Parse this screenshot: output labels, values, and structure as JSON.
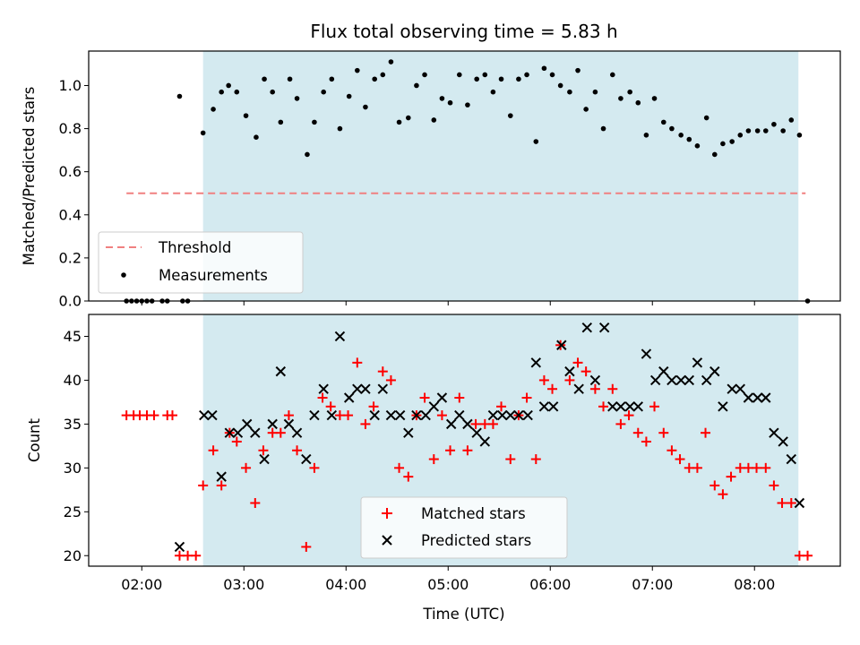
{
  "chart_data": [
    {
      "type": "scatter",
      "title": "Flux total observing time = 5.83 h",
      "xlabel": "",
      "ylabel": "Matched/Predicted stars",
      "ylim": [
        0,
        1.16
      ],
      "xlim_hours": [
        1.48,
        8.84
      ],
      "yticks": [
        "0.0",
        "0.2",
        "0.4",
        "0.6",
        "0.8",
        "1.0"
      ],
      "ytick_values": [
        0,
        0.2,
        0.4,
        0.6,
        0.8,
        1.0
      ],
      "shaded_region_hours": [
        2.6,
        8.43
      ],
      "shade_color": "#d4eaf0",
      "threshold": {
        "name": "Threshold",
        "value": 0.5,
        "x_range_hours": [
          1.85,
          8.5
        ],
        "color": "#f08080",
        "style": "dashed"
      },
      "legend_position": "lower-left",
      "series": [
        {
          "name": "Measurements",
          "color": "#000000",
          "marker": "dot",
          "points": [
            [
              1.85,
              0
            ],
            [
              1.9,
              0
            ],
            [
              1.95,
              0
            ],
            [
              2.0,
              0
            ],
            [
              2.05,
              0
            ],
            [
              2.1,
              0
            ],
            [
              2.2,
              0
            ],
            [
              2.25,
              0
            ],
            [
              2.4,
              0
            ],
            [
              2.45,
              0
            ],
            [
              2.37,
              0.95
            ],
            [
              2.6,
              0.78
            ],
            [
              2.7,
              0.89
            ],
            [
              2.78,
              0.97
            ],
            [
              2.85,
              1.0
            ],
            [
              2.93,
              0.97
            ],
            [
              3.02,
              0.86
            ],
            [
              3.12,
              0.76
            ],
            [
              3.2,
              1.03
            ],
            [
              3.28,
              0.97
            ],
            [
              3.36,
              0.83
            ],
            [
              3.45,
              1.03
            ],
            [
              3.52,
              0.94
            ],
            [
              3.62,
              0.68
            ],
            [
              3.69,
              0.83
            ],
            [
              3.78,
              0.97
            ],
            [
              3.86,
              1.03
            ],
            [
              3.94,
              0.8
            ],
            [
              4.03,
              0.95
            ],
            [
              4.11,
              1.07
            ],
            [
              4.19,
              0.9
            ],
            [
              4.28,
              1.03
            ],
            [
              4.36,
              1.05
            ],
            [
              4.44,
              1.11
            ],
            [
              4.52,
              0.83
            ],
            [
              4.61,
              0.85
            ],
            [
              4.69,
              1.0
            ],
            [
              4.77,
              1.05
            ],
            [
              4.86,
              0.84
            ],
            [
              4.94,
              0.94
            ],
            [
              5.02,
              0.92
            ],
            [
              5.11,
              1.05
            ],
            [
              5.19,
              0.91
            ],
            [
              5.28,
              1.03
            ],
            [
              5.36,
              1.05
            ],
            [
              5.44,
              0.97
            ],
            [
              5.52,
              1.03
            ],
            [
              5.61,
              0.86
            ],
            [
              5.69,
              1.03
            ],
            [
              5.77,
              1.05
            ],
            [
              5.86,
              0.74
            ],
            [
              5.94,
              1.08
            ],
            [
              6.02,
              1.05
            ],
            [
              6.1,
              1.0
            ],
            [
              6.19,
              0.97
            ],
            [
              6.27,
              1.07
            ],
            [
              6.35,
              0.89
            ],
            [
              6.44,
              0.97
            ],
            [
              6.52,
              0.8
            ],
            [
              6.61,
              1.05
            ],
            [
              6.69,
              0.94
            ],
            [
              6.78,
              0.97
            ],
            [
              6.86,
              0.92
            ],
            [
              6.94,
              0.77
            ],
            [
              7.02,
              0.94
            ],
            [
              7.11,
              0.83
            ],
            [
              7.19,
              0.8
            ],
            [
              7.28,
              0.77
            ],
            [
              7.36,
              0.75
            ],
            [
              7.44,
              0.72
            ],
            [
              7.53,
              0.85
            ],
            [
              7.61,
              0.68
            ],
            [
              7.69,
              0.73
            ],
            [
              7.78,
              0.74
            ],
            [
              7.86,
              0.77
            ],
            [
              7.94,
              0.79
            ],
            [
              8.03,
              0.79
            ],
            [
              8.11,
              0.79
            ],
            [
              8.19,
              0.82
            ],
            [
              8.28,
              0.79
            ],
            [
              8.36,
              0.84
            ],
            [
              8.44,
              0.77
            ],
            [
              8.52,
              0
            ]
          ]
        }
      ]
    },
    {
      "type": "scatter",
      "title": "",
      "xlabel": "Time (UTC)",
      "ylabel": "Count",
      "ylim": [
        18.8,
        47.5
      ],
      "xlim_hours": [
        1.48,
        8.84
      ],
      "yticks": [
        "20",
        "25",
        "30",
        "35",
        "40",
        "45"
      ],
      "ytick_values": [
        20,
        25,
        30,
        35,
        40,
        45
      ],
      "xticks": [
        "02:00",
        "03:00",
        "04:00",
        "05:00",
        "06:00",
        "07:00",
        "08:00"
      ],
      "xtick_values_hours": [
        2,
        3,
        4,
        5,
        6,
        7,
        8
      ],
      "shaded_region_hours": [
        2.6,
        8.43
      ],
      "legend_position": "lower-center",
      "series": [
        {
          "name": "Matched stars",
          "color": "#ff0000",
          "marker": "plus",
          "points": [
            [
              1.85,
              36
            ],
            [
              1.92,
              36
            ],
            [
              1.98,
              36
            ],
            [
              2.05,
              36
            ],
            [
              2.12,
              36
            ],
            [
              2.25,
              36
            ],
            [
              2.3,
              36
            ],
            [
              2.37,
              20
            ],
            [
              2.45,
              20
            ],
            [
              2.53,
              20
            ],
            [
              2.6,
              28
            ],
            [
              2.7,
              32
            ],
            [
              2.78,
              28
            ],
            [
              2.86,
              34
            ],
            [
              2.93,
              33
            ],
            [
              3.02,
              30
            ],
            [
              3.11,
              26
            ],
            [
              3.19,
              32
            ],
            [
              3.28,
              34
            ],
            [
              3.36,
              34
            ],
            [
              3.44,
              36
            ],
            [
              3.52,
              32
            ],
            [
              3.61,
              21
            ],
            [
              3.69,
              30
            ],
            [
              3.77,
              38
            ],
            [
              3.85,
              37
            ],
            [
              3.94,
              36
            ],
            [
              4.02,
              36
            ],
            [
              4.11,
              42
            ],
            [
              4.19,
              35
            ],
            [
              4.27,
              37
            ],
            [
              4.36,
              41
            ],
            [
              4.44,
              40
            ],
            [
              4.52,
              30
            ],
            [
              4.61,
              29
            ],
            [
              4.69,
              36
            ],
            [
              4.77,
              38
            ],
            [
              4.86,
              31
            ],
            [
              4.94,
              36
            ],
            [
              5.02,
              32
            ],
            [
              5.11,
              38
            ],
            [
              5.19,
              32
            ],
            [
              5.27,
              35
            ],
            [
              5.36,
              35
            ],
            [
              5.44,
              35
            ],
            [
              5.52,
              37
            ],
            [
              5.61,
              31
            ],
            [
              5.69,
              36
            ],
            [
              5.77,
              38
            ],
            [
              5.86,
              31
            ],
            [
              5.94,
              40
            ],
            [
              6.02,
              39
            ],
            [
              6.1,
              44
            ],
            [
              6.19,
              40
            ],
            [
              6.27,
              42
            ],
            [
              6.35,
              41
            ],
            [
              6.44,
              39
            ],
            [
              6.52,
              37
            ],
            [
              6.61,
              39
            ],
            [
              6.69,
              35
            ],
            [
              6.77,
              36
            ],
            [
              6.86,
              34
            ],
            [
              6.94,
              33
            ],
            [
              7.02,
              37
            ],
            [
              7.11,
              34
            ],
            [
              7.19,
              32
            ],
            [
              7.27,
              31
            ],
            [
              7.36,
              30
            ],
            [
              7.44,
              30
            ],
            [
              7.52,
              34
            ],
            [
              7.61,
              28
            ],
            [
              7.69,
              27
            ],
            [
              7.77,
              29
            ],
            [
              7.86,
              30
            ],
            [
              7.94,
              30
            ],
            [
              8.02,
              30
            ],
            [
              8.11,
              30
            ],
            [
              8.19,
              28
            ],
            [
              8.27,
              26
            ],
            [
              8.36,
              26
            ],
            [
              8.44,
              20
            ],
            [
              8.52,
              20
            ]
          ]
        },
        {
          "name": "Predicted stars",
          "color": "#000000",
          "marker": "x",
          "points": [
            [
              2.37,
              21
            ],
            [
              2.61,
              36
            ],
            [
              2.69,
              36
            ],
            [
              2.78,
              29
            ],
            [
              2.86,
              34
            ],
            [
              2.94,
              34
            ],
            [
              3.03,
              35
            ],
            [
              3.11,
              34
            ],
            [
              3.2,
              31
            ],
            [
              3.28,
              35
            ],
            [
              3.36,
              41
            ],
            [
              3.44,
              35
            ],
            [
              3.52,
              34
            ],
            [
              3.61,
              31
            ],
            [
              3.69,
              36
            ],
            [
              3.78,
              39
            ],
            [
              3.86,
              36
            ],
            [
              3.94,
              45
            ],
            [
              4.03,
              38
            ],
            [
              4.11,
              39
            ],
            [
              4.19,
              39
            ],
            [
              4.28,
              36
            ],
            [
              4.36,
              39
            ],
            [
              4.44,
              36
            ],
            [
              4.53,
              36
            ],
            [
              4.61,
              34
            ],
            [
              4.69,
              36
            ],
            [
              4.78,
              36
            ],
            [
              4.86,
              37
            ],
            [
              4.94,
              38
            ],
            [
              5.03,
              35
            ],
            [
              5.11,
              36
            ],
            [
              5.19,
              35
            ],
            [
              5.28,
              34
            ],
            [
              5.36,
              33
            ],
            [
              5.44,
              36
            ],
            [
              5.53,
              36
            ],
            [
              5.61,
              36
            ],
            [
              5.69,
              36
            ],
            [
              5.78,
              36
            ],
            [
              5.86,
              42
            ],
            [
              5.94,
              37
            ],
            [
              6.03,
              37
            ],
            [
              6.11,
              44
            ],
            [
              6.19,
              41
            ],
            [
              6.28,
              39
            ],
            [
              6.36,
              46
            ],
            [
              6.44,
              40
            ],
            [
              6.53,
              46
            ],
            [
              6.61,
              37
            ],
            [
              6.69,
              37
            ],
            [
              6.78,
              37
            ],
            [
              6.86,
              37
            ],
            [
              6.94,
              43
            ],
            [
              7.03,
              40
            ],
            [
              7.11,
              41
            ],
            [
              7.19,
              40
            ],
            [
              7.28,
              40
            ],
            [
              7.36,
              40
            ],
            [
              7.44,
              42
            ],
            [
              7.53,
              40
            ],
            [
              7.61,
              41
            ],
            [
              7.69,
              37
            ],
            [
              7.78,
              39
            ],
            [
              7.86,
              39
            ],
            [
              7.94,
              38
            ],
            [
              8.03,
              38
            ],
            [
              8.11,
              38
            ],
            [
              8.19,
              34
            ],
            [
              8.28,
              33
            ],
            [
              8.36,
              31
            ],
            [
              8.44,
              26
            ]
          ]
        }
      ]
    }
  ]
}
